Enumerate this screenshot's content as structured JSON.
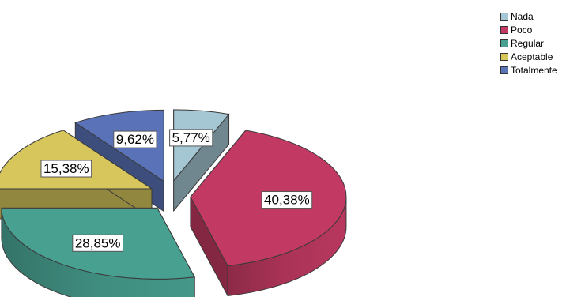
{
  "chart_data": {
    "type": "pie",
    "title": "",
    "legend_position": "top-right",
    "slices": [
      {
        "name": "Nada",
        "value": 5.77,
        "label": "5,77%",
        "color": "#a5c7d4",
        "exploded": true
      },
      {
        "name": "Poco",
        "value": 40.38,
        "label": "40,38%",
        "color": "#c23a63",
        "exploded": true
      },
      {
        "name": "Regular",
        "value": 28.85,
        "label": "28,85%",
        "color": "#48a090",
        "exploded": true
      },
      {
        "name": "Aceptable",
        "value": 15.38,
        "label": "15,38%",
        "color": "#d6c65c",
        "exploded": true
      },
      {
        "name": "Totalmente",
        "value": 9.62,
        "label": "9,62%",
        "color": "#5a73b8",
        "exploded": true
      }
    ]
  }
}
